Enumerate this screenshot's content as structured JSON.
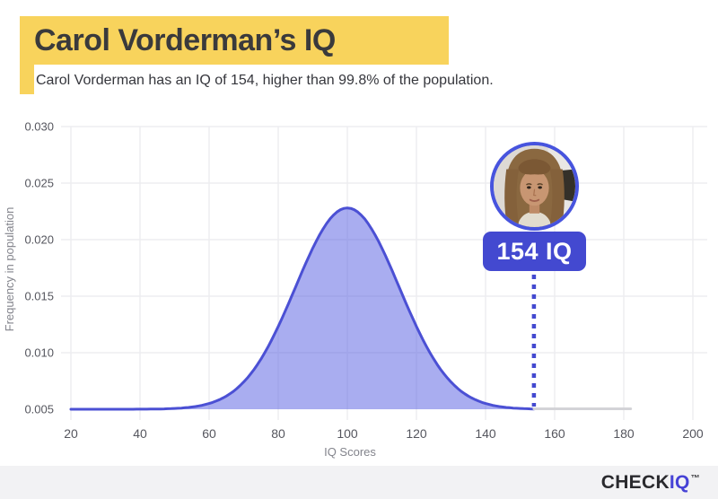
{
  "header": {
    "title": "Carol Vorderman’s IQ",
    "subtitle": "Carol Vorderman has an IQ of 154, higher than 99.8% of the population.",
    "highlight_color": "#F8D35C"
  },
  "chart_data": {
    "type": "area",
    "title": "",
    "xlabel": "IQ Scores",
    "ylabel": "Frequency in population",
    "xlim": [
      20,
      200
    ],
    "ylim": [
      0.005,
      0.03
    ],
    "x_ticks": [
      20,
      40,
      60,
      80,
      100,
      120,
      140,
      160,
      180,
      200
    ],
    "y_ticks": [
      0.005,
      0.01,
      0.015,
      0.02,
      0.025,
      0.03
    ],
    "grid": true,
    "legend": "none",
    "series": [
      {
        "name": "iq-normal-distribution",
        "shape": "normal",
        "mean": 100,
        "sd": 15,
        "baseline": 0.005,
        "peak": 0.0228,
        "x_range": [
          20,
          154
        ],
        "line_color": "#4B50D4",
        "fill_color": "rgba(84,91,226,0.5)"
      },
      {
        "name": "distribution-tail-gray",
        "shape": "flat",
        "value": 0.005,
        "x_range": [
          154,
          182
        ],
        "line_color": "#D3D3D7"
      }
    ],
    "marker": {
      "x": 154,
      "label": "154 IQ",
      "line_color": "#4349D0",
      "line_style": "dotted"
    }
  },
  "avatar": {
    "subject": "Carol Vorderman portrait photo",
    "border_color": "#4754DE"
  },
  "badge": {
    "label": "154 IQ",
    "bg_color": "#4349D0"
  },
  "footer": {
    "brand_primary": "CHECK",
    "brand_accent": "IQ",
    "trademark": "™",
    "bg_color": "#F2F2F4"
  }
}
